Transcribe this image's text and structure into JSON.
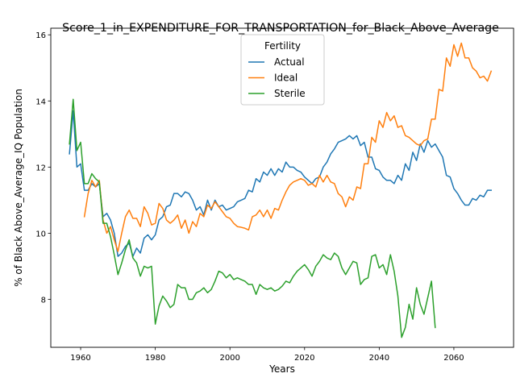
{
  "chart_data": {
    "type": "line",
    "title": "Score_1_in_EXPENDITURE_FOR_TRANSPORTATION_for_Black_Above_Average",
    "xlabel": "Years",
    "ylabel": "% of Black Above_Average_IQ Population",
    "xlim": [
      1952,
      2076
    ],
    "ylim": [
      6.55,
      16.2
    ],
    "xticks": [
      1960,
      1980,
      2000,
      2020,
      2040,
      2060
    ],
    "yticks": [
      8,
      10,
      12,
      14,
      16
    ],
    "grid": false,
    "legend": {
      "title": "Fertility",
      "placement": "upper-center"
    },
    "series": [
      {
        "name": "Actual",
        "color": "#1f77b4",
        "x": [
          1957,
          1958,
          1959,
          1960,
          1961,
          1962,
          1963,
          1964,
          1965,
          1966,
          1967,
          1968,
          1969,
          1970,
          1971,
          1972,
          1973,
          1974,
          1975,
          1976,
          1977,
          1978,
          1979,
          1980,
          1981,
          1982,
          1983,
          1984,
          1985,
          1986,
          1987,
          1988,
          1989,
          1990,
          1991,
          1992,
          1993,
          1994,
          1995,
          1996,
          1997,
          1998,
          1999,
          2000,
          2001,
          2002,
          2003,
          2004,
          2005,
          2006,
          2007,
          2008,
          2009,
          2010,
          2011,
          2012,
          2013,
          2014,
          2015,
          2016,
          2017,
          2018,
          2019,
          2020,
          2021,
          2022,
          2023,
          2024,
          2025,
          2026,
          2027,
          2028,
          2029,
          2030,
          2031,
          2032,
          2033,
          2034,
          2035,
          2036,
          2037,
          2038,
          2039,
          2040,
          2041,
          2042,
          2043,
          2044,
          2045,
          2046,
          2047,
          2048,
          2049,
          2050,
          2051,
          2052,
          2053,
          2054,
          2055,
          2056,
          2057,
          2058,
          2059,
          2060,
          2061,
          2062,
          2063,
          2064,
          2065,
          2066,
          2067,
          2068,
          2069,
          2070
        ],
        "y": [
          12.4,
          13.7,
          12.0,
          12.1,
          11.3,
          11.3,
          11.5,
          11.4,
          11.5,
          10.5,
          10.6,
          10.4,
          10.0,
          9.3,
          9.4,
          9.6,
          9.7,
          9.3,
          9.55,
          9.4,
          9.85,
          9.95,
          9.8,
          9.95,
          10.4,
          10.5,
          10.8,
          10.85,
          11.2,
          11.2,
          11.1,
          11.25,
          11.2,
          11.0,
          10.7,
          10.8,
          10.55,
          11.0,
          10.7,
          11.0,
          10.8,
          10.85,
          10.7,
          10.75,
          10.8,
          10.95,
          11.0,
          11.05,
          11.3,
          11.25,
          11.65,
          11.55,
          11.85,
          11.75,
          11.95,
          11.75,
          11.95,
          11.85,
          12.15,
          12.0,
          12.0,
          11.9,
          11.85,
          11.7,
          11.6,
          11.5,
          11.65,
          11.7,
          12.0,
          12.15,
          12.4,
          12.55,
          12.75,
          12.8,
          12.85,
          12.95,
          12.85,
          12.95,
          12.65,
          12.75,
          12.3,
          12.3,
          11.95,
          11.9,
          11.7,
          11.6,
          11.6,
          11.5,
          11.75,
          11.6,
          12.1,
          11.9,
          12.45,
          12.2,
          12.7,
          12.45,
          12.8,
          12.6,
          12.7,
          12.5,
          12.3,
          11.75,
          11.7,
          11.35,
          11.2,
          11.0,
          10.85,
          10.85,
          11.05,
          11.0,
          11.15,
          11.1,
          11.3,
          11.3
        ]
      },
      {
        "name": "Ideal",
        "color": "#ff7f0e",
        "x": [
          1961,
          1962,
          1963,
          1964,
          1965,
          1966,
          1967,
          1968,
          1969,
          1970,
          1971,
          1972,
          1973,
          1974,
          1975,
          1976,
          1977,
          1978,
          1979,
          1980,
          1981,
          1982,
          1983,
          1984,
          1985,
          1986,
          1987,
          1988,
          1989,
          1990,
          1991,
          1992,
          1993,
          1994,
          1995,
          1996,
          1997,
          1998,
          1999,
          2000,
          2001,
          2002,
          2003,
          2004,
          2005,
          2006,
          2007,
          2008,
          2009,
          2010,
          2011,
          2012,
          2013,
          2014,
          2015,
          2016,
          2017,
          2018,
          2019,
          2020,
          2021,
          2022,
          2023,
          2024,
          2025,
          2026,
          2027,
          2028,
          2029,
          2030,
          2031,
          2032,
          2033,
          2034,
          2035,
          2036,
          2037,
          2038,
          2039,
          2040,
          2041,
          2042,
          2043,
          2044,
          2045,
          2046,
          2047,
          2048,
          2049,
          2050,
          2051,
          2052,
          2053,
          2054,
          2055,
          2056,
          2057,
          2058,
          2059,
          2060,
          2061,
          2062,
          2063,
          2064,
          2065,
          2066,
          2067,
          2068,
          2069,
          2070
        ],
        "y": [
          10.5,
          11.2,
          11.6,
          11.4,
          11.6,
          10.4,
          10.0,
          10.2,
          9.8,
          9.45,
          10.0,
          10.5,
          10.7,
          10.45,
          10.45,
          10.2,
          10.8,
          10.6,
          10.25,
          10.3,
          10.9,
          10.75,
          10.4,
          10.3,
          10.4,
          10.55,
          10.15,
          10.4,
          10.0,
          10.35,
          10.2,
          10.6,
          10.5,
          10.85,
          10.75,
          10.95,
          10.8,
          10.65,
          10.5,
          10.45,
          10.3,
          10.2,
          10.18,
          10.15,
          10.1,
          10.5,
          10.55,
          10.7,
          10.5,
          10.7,
          10.45,
          10.75,
          10.7,
          11.0,
          11.25,
          11.45,
          11.55,
          11.6,
          11.65,
          11.6,
          11.45,
          11.5,
          11.4,
          11.75,
          11.55,
          11.75,
          11.55,
          11.5,
          11.2,
          11.1,
          10.8,
          11.1,
          11.0,
          11.4,
          11.35,
          12.1,
          12.1,
          12.9,
          12.75,
          13.4,
          13.2,
          13.65,
          13.4,
          13.55,
          13.2,
          13.25,
          12.95,
          12.9,
          12.8,
          12.7,
          12.65,
          12.8,
          12.85,
          13.45,
          13.45,
          14.35,
          14.3,
          15.3,
          15.05,
          15.7,
          15.35,
          15.75,
          15.3,
          15.3,
          15.0,
          14.9,
          14.7,
          14.75,
          14.6,
          14.9
        ]
      },
      {
        "name": "Sterile",
        "color": "#2ca02c",
        "x": [
          1957,
          1958,
          1959,
          1960,
          1961,
          1962,
          1963,
          1964,
          1965,
          1966,
          1967,
          1968,
          1969,
          1970,
          1971,
          1972,
          1973,
          1974,
          1975,
          1976,
          1977,
          1978,
          1979,
          1980,
          1981,
          1982,
          1983,
          1984,
          1985,
          1986,
          1987,
          1988,
          1989,
          1990,
          1991,
          1992,
          1993,
          1994,
          1995,
          1996,
          1997,
          1998,
          1999,
          2000,
          2001,
          2002,
          2003,
          2004,
          2005,
          2006,
          2007,
          2008,
          2009,
          2010,
          2011,
          2012,
          2013,
          2014,
          2015,
          2016,
          2017,
          2018,
          2019,
          2020,
          2021,
          2022,
          2023,
          2024,
          2025,
          2026,
          2027,
          2028,
          2029,
          2030,
          2031,
          2032,
          2033,
          2034,
          2035,
          2036,
          2037,
          2038,
          2039,
          2040,
          2041,
          2042,
          2043,
          2044,
          2045,
          2046,
          2047,
          2048,
          2049,
          2050,
          2051,
          2052,
          2053,
          2054,
          2055
        ],
        "y": [
          12.7,
          14.05,
          12.5,
          12.75,
          11.5,
          11.5,
          11.8,
          11.65,
          11.55,
          10.3,
          10.3,
          9.9,
          9.35,
          8.75,
          9.1,
          9.5,
          9.8,
          9.25,
          9.1,
          8.7,
          9.0,
          8.95,
          9.0,
          7.25,
          7.8,
          8.1,
          7.95,
          7.75,
          7.85,
          8.45,
          8.35,
          8.35,
          8.0,
          8.0,
          8.2,
          8.25,
          8.35,
          8.2,
          8.3,
          8.55,
          8.85,
          8.8,
          8.65,
          8.75,
          8.6,
          8.65,
          8.6,
          8.55,
          8.45,
          8.45,
          8.15,
          8.45,
          8.35,
          8.3,
          8.35,
          8.25,
          8.3,
          8.4,
          8.55,
          8.5,
          8.7,
          8.85,
          8.95,
          9.05,
          8.9,
          8.7,
          9.0,
          9.15,
          9.35,
          9.25,
          9.2,
          9.4,
          9.3,
          8.95,
          8.75,
          8.95,
          9.15,
          9.1,
          8.45,
          8.6,
          8.65,
          9.3,
          9.35,
          8.95,
          9.05,
          8.75,
          9.35,
          8.85,
          8.1,
          6.85,
          7.15,
          7.85,
          7.4,
          8.35,
          7.85,
          7.55,
          8.05,
          8.55,
          7.15
        ]
      }
    ]
  }
}
